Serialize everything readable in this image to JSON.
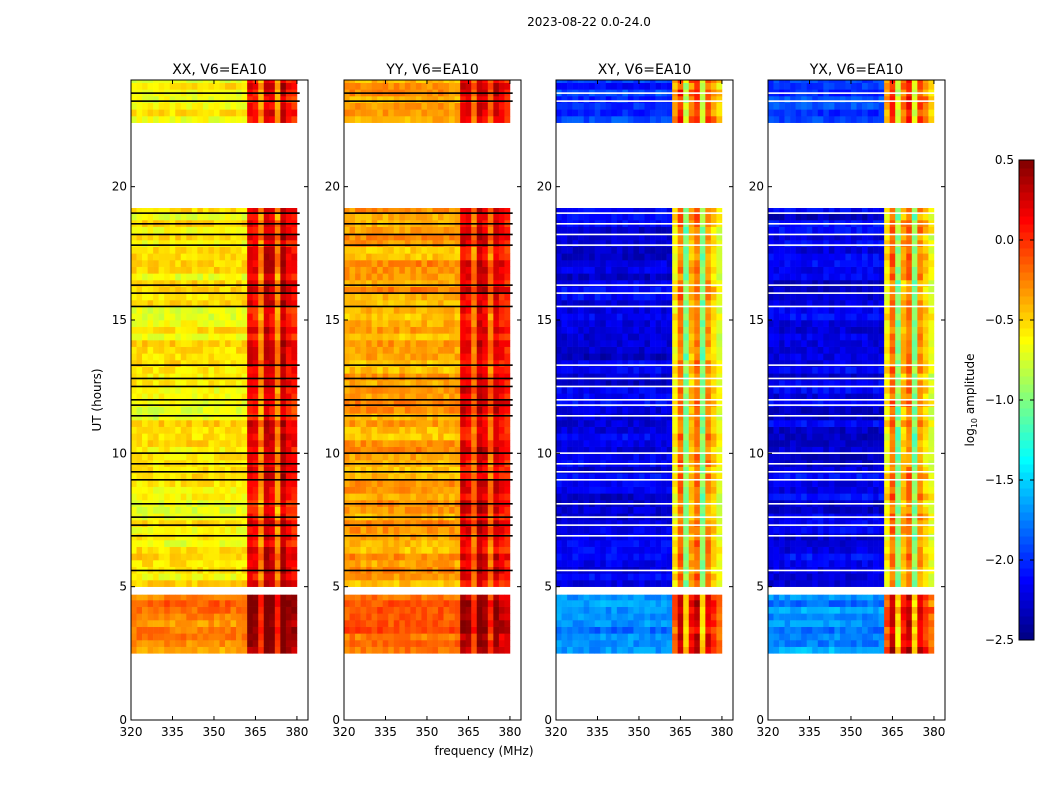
{
  "chart_data": {
    "type": "heatmap",
    "title": "2023-08-22 0.0-24.0",
    "xlabel": "frequency (MHz)",
    "ylabel": "UT (hours)",
    "xlim": [
      320,
      384
    ],
    "ylim": [
      0,
      24
    ],
    "xticks": [
      320,
      335,
      350,
      365,
      380
    ],
    "yticks": [
      0,
      5,
      10,
      15,
      20
    ],
    "freq_bin_start": 320,
    "freq_bin_width": 2,
    "time_bin_width": 0.25,
    "colorbar": {
      "label": "log10 amplitude",
      "label_main": "log",
      "label_sub": "10",
      "label_rest": " amplitude",
      "range": [
        -2.5,
        0.5
      ],
      "ticks": [
        "0.5",
        "0.0",
        "−0.5",
        "−1.0",
        "−1.5",
        "−2.0",
        "−2.5"
      ],
      "tick_values": [
        0.5,
        0.0,
        -0.5,
        -1.0,
        -1.5,
        -2.0,
        -2.5
      ]
    },
    "flagged_times": [
      5.6,
      6.9,
      7.3,
      7.6,
      8.1,
      9.0,
      9.3,
      9.6,
      10.0,
      11.4,
      11.8,
      12.0,
      12.5,
      12.8,
      13.3,
      15.5,
      16.0,
      16.3,
      17.8,
      18.2,
      18.6,
      19.0,
      23.2,
      23.5
    ],
    "panels": [
      {
        "title": "XX, V6=EA10",
        "profile": [
          -0.6,
          -0.6,
          -0.6,
          -0.6,
          -0.6,
          -0.6,
          -0.6,
          -0.6,
          -0.6,
          -0.6,
          -0.6,
          -0.6,
          -0.6,
          -0.6,
          -0.6,
          -0.6,
          -0.6,
          -0.6,
          -0.6,
          -0.6,
          -0.6,
          0.15,
          0.1,
          -0.3,
          0.25,
          0.2,
          -0.3,
          0.3,
          0.1,
          0.05
        ],
        "segments": [
          {
            "t0": 2.5,
            "t1": 4.7,
            "offset": 0.35
          },
          {
            "t0": 5.0,
            "t1": 19.2,
            "offset": 0
          },
          {
            "t0": 22.4,
            "t1": 24,
            "offset": 0
          }
        ]
      },
      {
        "title": "YY, V6=EA10",
        "profile": [
          -0.35,
          -0.35,
          -0.35,
          -0.35,
          -0.35,
          -0.35,
          -0.35,
          -0.35,
          -0.35,
          -0.35,
          -0.35,
          -0.35,
          -0.35,
          -0.35,
          -0.35,
          -0.35,
          -0.35,
          -0.35,
          -0.35,
          -0.35,
          -0.35,
          0.2,
          0.15,
          -0.2,
          0.3,
          0.2,
          -0.2,
          0.25,
          0.1,
          0.05
        ],
        "segments": [
          {
            "t0": 2.5,
            "t1": 4.7,
            "offset": 0.2
          },
          {
            "t0": 5.0,
            "t1": 19.2,
            "offset": 0
          },
          {
            "t0": 22.4,
            "t1": 24,
            "offset": 0
          }
        ]
      },
      {
        "title": "XY, V6=EA10",
        "profile": [
          -2.2,
          -2.2,
          -2.2,
          -2.2,
          -2.2,
          -2.2,
          -2.2,
          -2.2,
          -2.2,
          -2.2,
          -2.2,
          -2.2,
          -2.2,
          -2.2,
          -2.2,
          -2.2,
          -2.2,
          -2.2,
          -2.2,
          -2.2,
          -2.2,
          -0.6,
          -0.2,
          -1.0,
          -0.4,
          -0.2,
          -1.0,
          -0.3,
          -0.5,
          -0.7
        ],
        "segments": [
          {
            "t0": 2.5,
            "t1": 4.7,
            "offset": 0.5
          },
          {
            "t0": 5.0,
            "t1": 19.2,
            "offset": 0
          },
          {
            "t0": 22.4,
            "t1": 24,
            "offset": 0.2
          }
        ]
      },
      {
        "title": "YX, V6=EA10",
        "profile": [
          -2.2,
          -2.2,
          -2.2,
          -2.2,
          -2.2,
          -2.2,
          -2.2,
          -2.2,
          -2.2,
          -2.2,
          -2.2,
          -2.2,
          -2.2,
          -2.2,
          -2.2,
          -2.2,
          -2.2,
          -2.2,
          -2.2,
          -2.2,
          -2.2,
          -0.6,
          -0.2,
          -1.0,
          -0.4,
          -0.2,
          -1.0,
          -0.3,
          -0.5,
          -0.7
        ],
        "segments": [
          {
            "t0": 2.5,
            "t1": 4.7,
            "offset": 0.5
          },
          {
            "t0": 5.0,
            "t1": 19.2,
            "offset": 0
          },
          {
            "t0": 22.4,
            "t1": 24,
            "offset": 0.2
          }
        ]
      }
    ]
  }
}
